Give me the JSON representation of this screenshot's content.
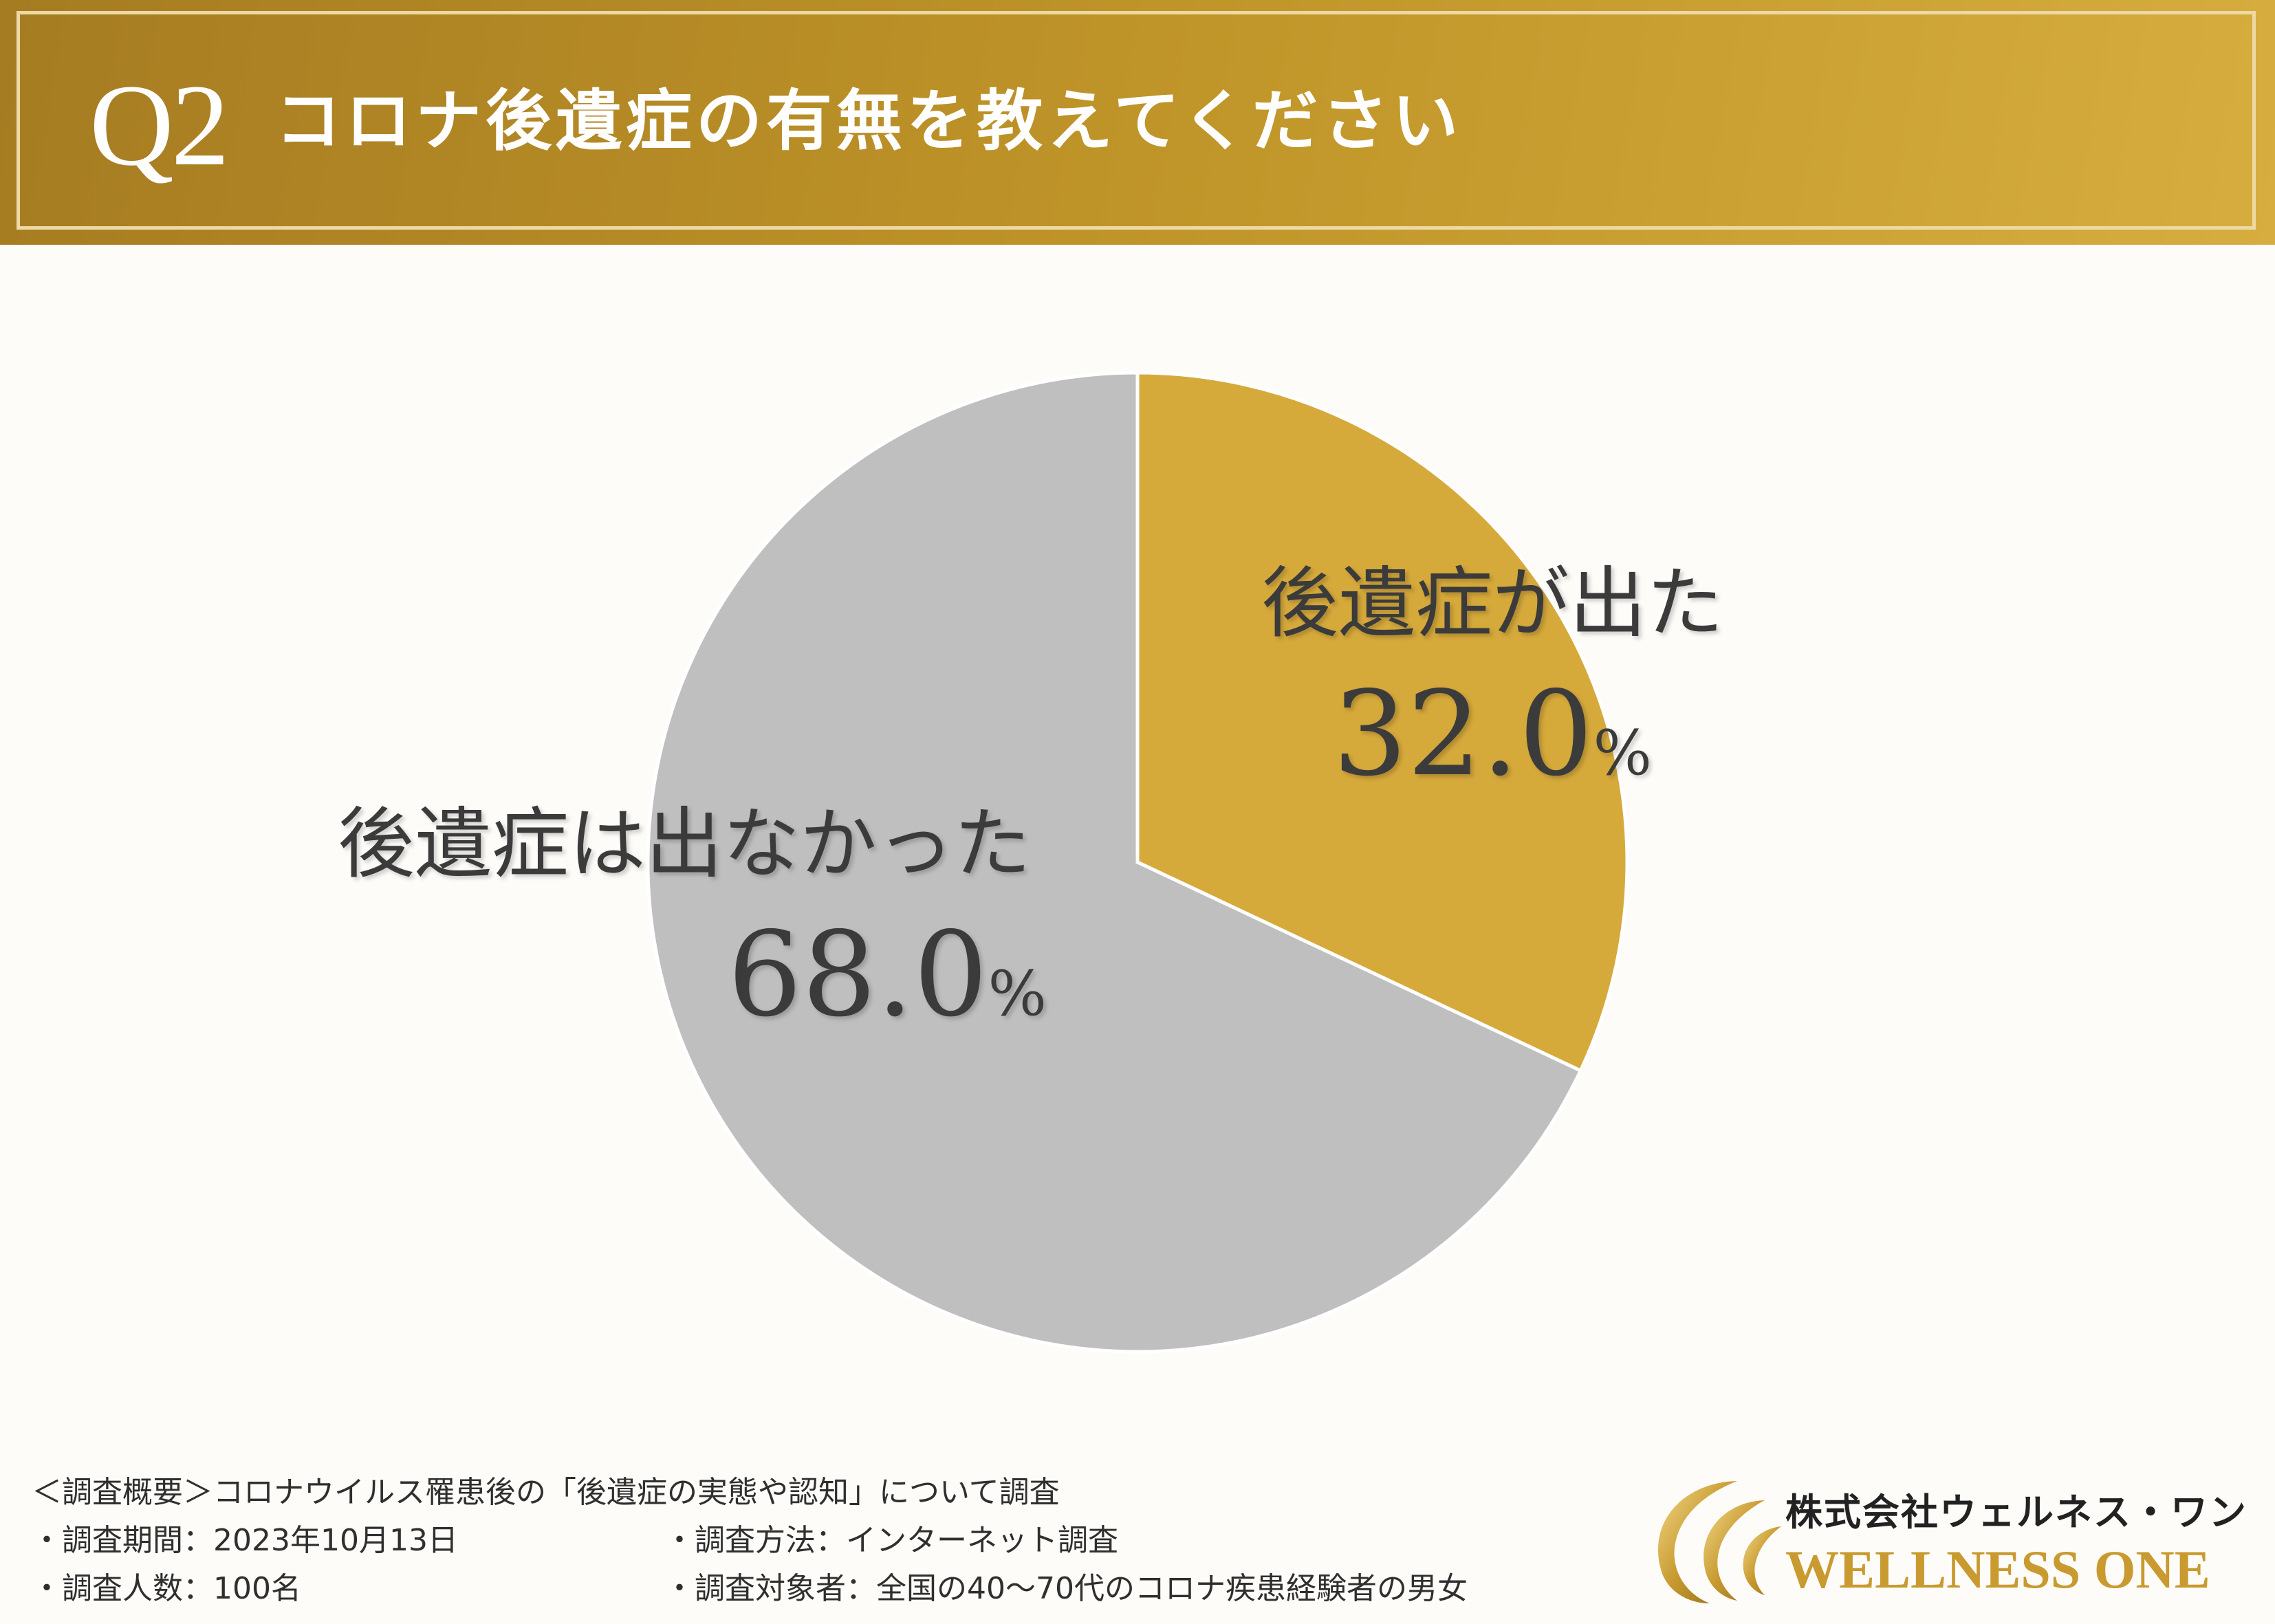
{
  "header": {
    "q_label": "Q2",
    "title": "コロナ後遺症の有無を教えてください"
  },
  "chart_data": {
    "type": "pie",
    "slices": [
      {
        "label": "後遺症が出た",
        "value": 32.0,
        "display": "32.0",
        "color": "#d6a93b"
      },
      {
        "label": "後遺症は出なかった",
        "value": 68.0,
        "display": "68.0",
        "color": "#bfbfbf"
      }
    ],
    "unit": "%",
    "start_angle": "12 o'clock, clockwise",
    "legend": "none (labels on slices)"
  },
  "footer": {
    "summary": "＜調査概要＞コロナウイルス罹患後の「後遺症の実態や認知」について調査",
    "period": "・調査期間：2023年10月13日",
    "method": "・調査方法：インターネット調査",
    "count": "・調査人数：100名",
    "target": "・調査対象者：全国の40〜70代のコロナ疾患経験者の男女"
  },
  "logo": {
    "company_jp": "株式会社ウェルネス・ワン",
    "company_en": "WELLNESS ONE",
    "accent_color": "#c89a2f"
  }
}
